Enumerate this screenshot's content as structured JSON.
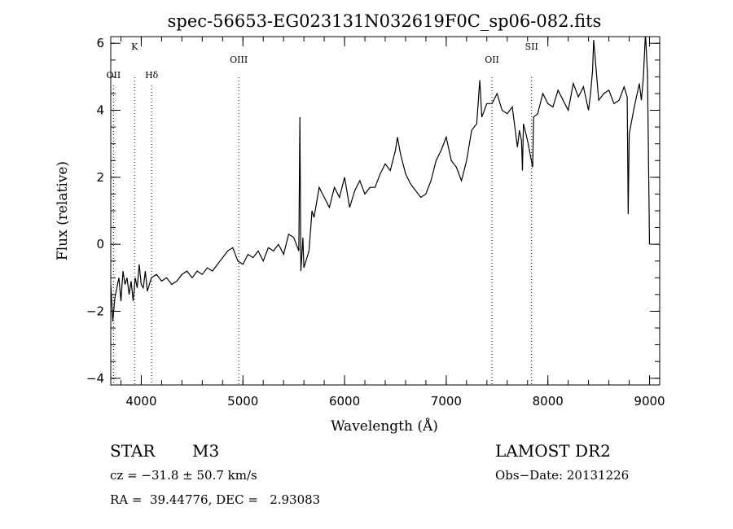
{
  "chart_data": {
    "type": "line",
    "title": "spec-56653-EG023131N032619F0C_sp06-082.fits",
    "xlabel": "Wavelength (Å)",
    "ylabel": "Flux (relative)",
    "xlim": [
      3700,
      9100
    ],
    "ylim": [
      -4.2,
      6.2
    ],
    "x_ticks": [
      4000,
      5000,
      6000,
      7000,
      8000,
      9000
    ],
    "y_ticks": [
      -4,
      -2,
      0,
      2,
      4,
      6
    ],
    "x_minor_step": 200,
    "y_minor_step": 0.5,
    "grid": false,
    "line_color": "#000000",
    "annotations": [
      {
        "label": "OII",
        "wavelength": 3727,
        "label_level": "low"
      },
      {
        "label": "K",
        "wavelength": 3934,
        "label_level": "high"
      },
      {
        "label": "Hδ",
        "wavelength": 4102,
        "label_level": "low"
      },
      {
        "label": "OIII",
        "wavelength": 4959,
        "label_level": "mid"
      },
      {
        "label": "OII",
        "wavelength": 7450,
        "label_level": "mid"
      },
      {
        "label": "SII",
        "wavelength": 7840,
        "label_level": "high"
      }
    ],
    "series": [
      {
        "x": [
          3700,
          3720,
          3740,
          3760,
          3780,
          3800,
          3820,
          3840,
          3860,
          3880,
          3900,
          3920,
          3940,
          3960,
          3980,
          4000,
          4020,
          4040,
          4060,
          4080,
          4100,
          4150,
          4200,
          4250,
          4300,
          4350,
          4400,
          4450,
          4500,
          4550,
          4600,
          4650,
          4700,
          4750,
          4800,
          4850,
          4900,
          4950,
          5000,
          5050,
          5100,
          5150,
          5200,
          5250,
          5300,
          5350,
          5400,
          5450,
          5500,
          5550,
          5560,
          5570,
          5580,
          5590,
          5600,
          5650,
          5680,
          5700,
          5750,
          5800,
          5850,
          5900,
          5950,
          6000,
          6050,
          6100,
          6150,
          6200,
          6250,
          6300,
          6350,
          6400,
          6450,
          6500,
          6520,
          6550,
          6600,
          6650,
          6700,
          6750,
          6800,
          6850,
          6900,
          6950,
          7000,
          7050,
          7100,
          7150,
          7200,
          7250,
          7300,
          7330,
          7350,
          7400,
          7450,
          7500,
          7550,
          7600,
          7650,
          7700,
          7720,
          7740,
          7750,
          7760,
          7800,
          7850,
          7860,
          7900,
          7950,
          8000,
          8050,
          8100,
          8150,
          8200,
          8250,
          8300,
          8350,
          8400,
          8420,
          8440,
          8450,
          8500,
          8550,
          8600,
          8650,
          8700,
          8750,
          8780,
          8790,
          8800,
          8850,
          8900,
          8920,
          8940,
          8960,
          8980,
          9000
        ],
        "y": [
          -1.2,
          -2.3,
          -1.6,
          -1.3,
          -1.0,
          -1.7,
          -0.8,
          -1.2,
          -1.0,
          -1.5,
          -1.1,
          -1.7,
          -1.0,
          -1.3,
          -0.6,
          -1.2,
          -1.3,
          -0.8,
          -1.4,
          -1.2,
          -1.0,
          -0.9,
          -1.1,
          -1.0,
          -1.2,
          -1.1,
          -0.9,
          -0.8,
          -1.0,
          -0.8,
          -0.9,
          -0.7,
          -0.8,
          -0.6,
          -0.4,
          -0.2,
          -0.1,
          -0.5,
          -0.6,
          -0.3,
          -0.4,
          -0.2,
          -0.5,
          -0.1,
          -0.2,
          0.0,
          -0.3,
          0.3,
          0.2,
          -0.2,
          3.8,
          -0.8,
          -0.3,
          0.2,
          -0.7,
          -0.2,
          1.0,
          0.8,
          1.7,
          1.4,
          1.1,
          1.7,
          1.4,
          2.0,
          1.1,
          1.6,
          1.9,
          1.5,
          1.7,
          1.7,
          2.1,
          2.4,
          2.2,
          2.8,
          3.2,
          2.7,
          2.1,
          1.8,
          1.6,
          1.4,
          1.5,
          1.9,
          2.5,
          2.8,
          3.2,
          2.5,
          2.3,
          1.9,
          2.5,
          3.4,
          3.6,
          4.9,
          3.8,
          4.2,
          4.2,
          4.5,
          4.0,
          3.9,
          4.1,
          2.9,
          3.4,
          3.1,
          2.2,
          3.6,
          3.1,
          2.3,
          3.8,
          3.9,
          4.5,
          4.2,
          4.1,
          4.6,
          4.3,
          4.0,
          4.8,
          4.4,
          4.7,
          4.0,
          4.5,
          5.2,
          6.1,
          4.3,
          4.5,
          4.6,
          4.2,
          4.3,
          4.7,
          4.4,
          0.9,
          3.3,
          4.1,
          4.8,
          4.3,
          5.0,
          6.3,
          5.1,
          0.0
        ]
      }
    ]
  },
  "footer": {
    "object_class": "STAR",
    "subclass": "M3",
    "survey": "LAMOST DR2",
    "cz_line": "cz = −31.8 ± 50.7 km/s",
    "obs_date": "Obs−Date: 20131226",
    "coords": "RA =  39.44776, DEC =   2.93083"
  }
}
